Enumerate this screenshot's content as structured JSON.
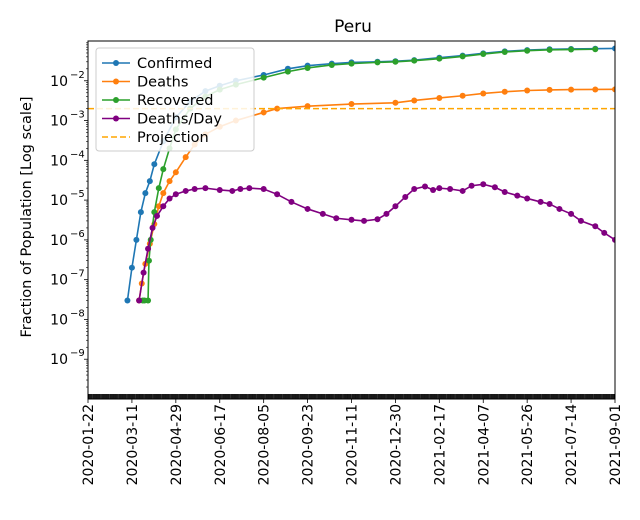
{
  "chart_data": {
    "type": "line",
    "title": "Peru",
    "xlabel": "",
    "ylabel": "Fraction of Population [Log scale]",
    "yscale": "log",
    "ylim": [
      1e-10,
      0.1
    ],
    "ytick_values": [
      1e-09,
      1e-08,
      1e-07,
      1e-06,
      1e-05,
      0.0001,
      0.001,
      0.01
    ],
    "ytick_labels": [
      "10",
      "10",
      "10",
      "10",
      "10",
      "10",
      "10",
      "10"
    ],
    "ytick_exponents": [
      "−9",
      "−8",
      "−7",
      "−6",
      "−5",
      "−4",
      "−3",
      "−2"
    ],
    "xlim": [
      "2020-01-22",
      "2021-09-01"
    ],
    "xtick_labels": [
      "2020-01-22",
      "2020-03-11",
      "2020-04-29",
      "2020-06-17",
      "2020-08-05",
      "2020-09-23",
      "2020-11-11",
      "2020-12-30",
      "2021-02-17",
      "2021-04-07",
      "2021-05-26",
      "2021-07-14",
      "2021-09-01"
    ],
    "legend_position": "upper-left",
    "series": [
      {
        "name": "Confirmed",
        "color": "#1f77b4",
        "marker": "dot",
        "x": [
          "2020-03-06",
          "2020-03-11",
          "2020-03-16",
          "2020-03-21",
          "2020-03-26",
          "2020-03-31",
          "2020-04-05",
          "2020-04-15",
          "2020-04-29",
          "2020-05-15",
          "2020-06-01",
          "2020-06-17",
          "2020-07-05",
          "2020-08-05",
          "2020-09-01",
          "2020-09-23",
          "2020-10-20",
          "2020-11-11",
          "2020-12-10",
          "2020-12-30",
          "2021-01-20",
          "2021-02-17",
          "2021-03-15",
          "2021-04-07",
          "2021-05-01",
          "2021-05-26",
          "2021-06-20",
          "2021-07-14",
          "2021-08-10",
          "2021-09-01"
        ],
        "y": [
          3e-08,
          2e-07,
          1e-06,
          5e-06,
          1.5e-05,
          3e-05,
          8e-05,
          0.0003,
          0.0012,
          0.003,
          0.0055,
          0.0075,
          0.01,
          0.014,
          0.02,
          0.024,
          0.027,
          0.029,
          0.03,
          0.031,
          0.033,
          0.038,
          0.043,
          0.049,
          0.055,
          0.059,
          0.062,
          0.063,
          0.064,
          0.065
        ]
      },
      {
        "name": "Deaths",
        "color": "#ff7f0e",
        "marker": "dot",
        "x": [
          "2020-03-19",
          "2020-03-22",
          "2020-03-26",
          "2020-03-31",
          "2020-04-05",
          "2020-04-10",
          "2020-04-15",
          "2020-04-22",
          "2020-04-29",
          "2020-05-10",
          "2020-05-20",
          "2020-06-01",
          "2020-06-17",
          "2020-07-05",
          "2020-08-05",
          "2020-08-20",
          "2020-09-23",
          "2020-11-11",
          "2020-12-30",
          "2021-01-20",
          "2021-02-17",
          "2021-03-15",
          "2021-04-07",
          "2021-05-01",
          "2021-05-26",
          "2021-06-20",
          "2021-07-14",
          "2021-08-10",
          "2021-09-01"
        ],
        "y": [
          3e-08,
          8e-08,
          2.5e-07,
          8e-07,
          2.5e-06,
          7e-06,
          1.5e-05,
          3e-05,
          5e-05,
          0.00012,
          0.00025,
          0.00045,
          0.0007,
          0.001,
          0.0016,
          0.002,
          0.0023,
          0.0026,
          0.0028,
          0.0032,
          0.0037,
          0.0042,
          0.0048,
          0.0053,
          0.0057,
          0.0059,
          0.006,
          0.00605,
          0.0061
        ]
      },
      {
        "name": "Recovered",
        "color": "#2ca02c",
        "marker": "dot",
        "x": [
          "2020-03-23",
          "2020-03-25",
          "2020-03-29",
          "2020-03-30",
          "2020-04-01",
          "2020-04-05",
          "2020-04-10",
          "2020-04-15",
          "2020-04-22",
          "2020-04-29",
          "2020-05-15",
          "2020-06-01",
          "2020-06-17",
          "2020-07-05",
          "2020-08-05",
          "2020-09-01",
          "2020-09-23",
          "2020-10-20",
          "2020-11-11",
          "2020-12-10",
          "2020-12-30",
          "2021-01-20",
          "2021-02-17",
          "2021-03-15",
          "2021-04-07",
          "2021-05-01",
          "2021-05-26",
          "2021-06-20",
          "2021-07-14",
          "2021-08-10"
        ],
        "y": [
          3e-08,
          3e-08,
          3e-08,
          3e-07,
          1e-06,
          5e-06,
          2e-05,
          6e-05,
          0.0002,
          0.0006,
          0.002,
          0.004,
          0.006,
          0.008,
          0.012,
          0.017,
          0.021,
          0.025,
          0.027,
          0.029,
          0.03,
          0.032,
          0.036,
          0.041,
          0.047,
          0.053,
          0.057,
          0.06,
          0.061,
          0.062
        ]
      },
      {
        "name": "Deaths/Day",
        "color": "#800080",
        "marker": "dot",
        "x": [
          "2020-03-19",
          "2020-03-24",
          "2020-03-29",
          "2020-04-03",
          "2020-04-08",
          "2020-04-15",
          "2020-04-22",
          "2020-04-29",
          "2020-05-10",
          "2020-05-20",
          "2020-06-01",
          "2020-06-17",
          "2020-07-01",
          "2020-07-10",
          "2020-07-20",
          "2020-08-05",
          "2020-08-20",
          "2020-09-05",
          "2020-09-23",
          "2020-10-10",
          "2020-10-25",
          "2020-11-11",
          "2020-11-25",
          "2020-12-10",
          "2020-12-20",
          "2020-12-30",
          "2021-01-10",
          "2021-01-20",
          "2021-02-01",
          "2021-02-10",
          "2021-02-17",
          "2021-03-01",
          "2021-03-15",
          "2021-03-25",
          "2021-04-07",
          "2021-04-20",
          "2021-05-01",
          "2021-05-15",
          "2021-05-26",
          "2021-06-10",
          "2021-06-20",
          "2021-07-01",
          "2021-07-14",
          "2021-07-25",
          "2021-08-10",
          "2021-08-20",
          "2021-09-01"
        ],
        "y": [
          3e-08,
          1.5e-07,
          6e-07,
          2e-06,
          4e-06,
          7e-06,
          1.1e-05,
          1.4e-05,
          1.7e-05,
          1.9e-05,
          2e-05,
          1.8e-05,
          1.7e-05,
          1.9e-05,
          2e-05,
          1.9e-05,
          1.4e-05,
          9e-06,
          6e-06,
          4.5e-06,
          3.5e-06,
          3.2e-06,
          3e-06,
          3.3e-06,
          4.5e-06,
          7e-06,
          1.2e-05,
          1.9e-05,
          2.2e-05,
          1.8e-05,
          2e-05,
          1.9e-05,
          1.7e-05,
          2.3e-05,
          2.5e-05,
          2.1e-05,
          1.6e-05,
          1.3e-05,
          1.1e-05,
          9e-06,
          8e-06,
          6e-06,
          4.5e-06,
          3e-06,
          2.2e-06,
          1.5e-06,
          1e-06
        ]
      },
      {
        "name": "Projection",
        "color": "#ffa500",
        "style": "dashed",
        "constant": 0.002
      }
    ]
  }
}
